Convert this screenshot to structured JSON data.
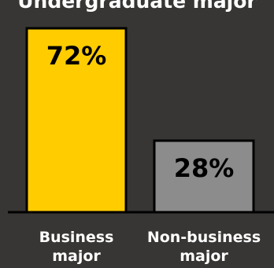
{
  "chart_data": {
    "type": "bar",
    "title": "Undergraduate major",
    "categories": [
      "Business major",
      "Non-business major"
    ],
    "values": [
      72,
      28
    ],
    "value_labels": [
      "72%",
      "28%"
    ],
    "ylim": [
      0,
      100
    ],
    "grid": false,
    "legend": "none",
    "colors": [
      "#ffcc00",
      "#8c8c8c"
    ],
    "background": "#383634",
    "label_color": "#ffffff",
    "value_label_color": "#000000",
    "bar_outline_color": "#000000"
  }
}
